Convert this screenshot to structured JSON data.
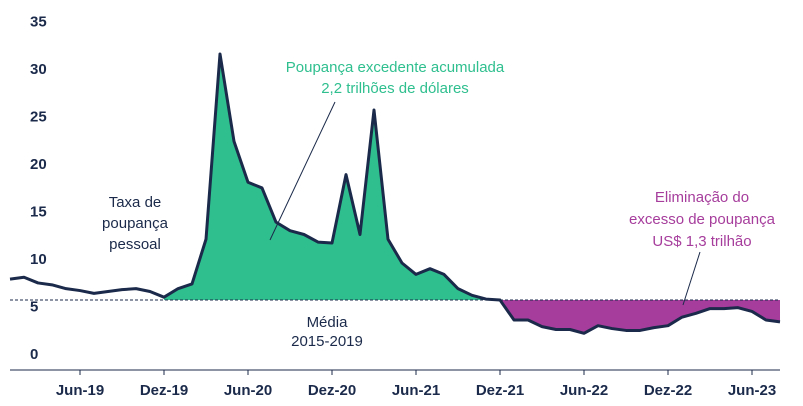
{
  "chart_data": {
    "type": "line",
    "categories": [
      null,
      null,
      null,
      null,
      null,
      "Jun-19",
      null,
      null,
      null,
      null,
      null,
      "Dez-19",
      null,
      null,
      null,
      null,
      null,
      "Jun-20",
      null,
      null,
      null,
      null,
      null,
      "Dez-20",
      null,
      null,
      null,
      null,
      null,
      "Jun-21",
      null,
      null,
      null,
      null,
      null,
      "Dez-21",
      null,
      null,
      null,
      null,
      null,
      "Jun-22",
      null,
      null,
      null,
      null,
      null,
      "Dez-22",
      null,
      null,
      null,
      null,
      null,
      "Jun-23",
      null,
      null
    ],
    "series": [
      {
        "name": "Taxa de poupança pessoal",
        "color": "#1b2a4a",
        "values": [
          8.3,
          8.5,
          7.9,
          7.7,
          7.3,
          7.1,
          6.8,
          7.0,
          7.2,
          7.3,
          7.0,
          6.4,
          7.3,
          7.8,
          12.5,
          32.0,
          22.8,
          18.5,
          17.9,
          14.3,
          13.4,
          13.0,
          12.2,
          12.1,
          19.3,
          13.0,
          26.1,
          12.5,
          10.0,
          8.8,
          9.4,
          8.8,
          7.3,
          6.6,
          6.2,
          6.1,
          4.0,
          4.0,
          3.3,
          3.0,
          3.0,
          2.6,
          3.4,
          3.1,
          2.9,
          2.9,
          3.2,
          3.4,
          4.3,
          4.7,
          5.2,
          5.2,
          5.3,
          4.9,
          4.0,
          3.8
        ]
      }
    ],
    "mean": 6.1,
    "ylim": [
      0,
      35
    ],
    "yticks": [
      0,
      5,
      10,
      15,
      20,
      25,
      30,
      35
    ],
    "annotations": {
      "series_label": [
        "Taxa de",
        "poupança",
        "pessoal"
      ],
      "mean_label": [
        "Média",
        "2015-2019"
      ],
      "excess": {
        "lines": [
          "Poupança excedente acumulada",
          "2,2 trilhões de dólares"
        ],
        "color": "#2fbf8f"
      },
      "drawdown": {
        "lines": [
          "Eliminação do",
          "excesso de poupança",
          "US$ 1,3 trilhão"
        ],
        "color": "#a63d9c"
      }
    }
  }
}
